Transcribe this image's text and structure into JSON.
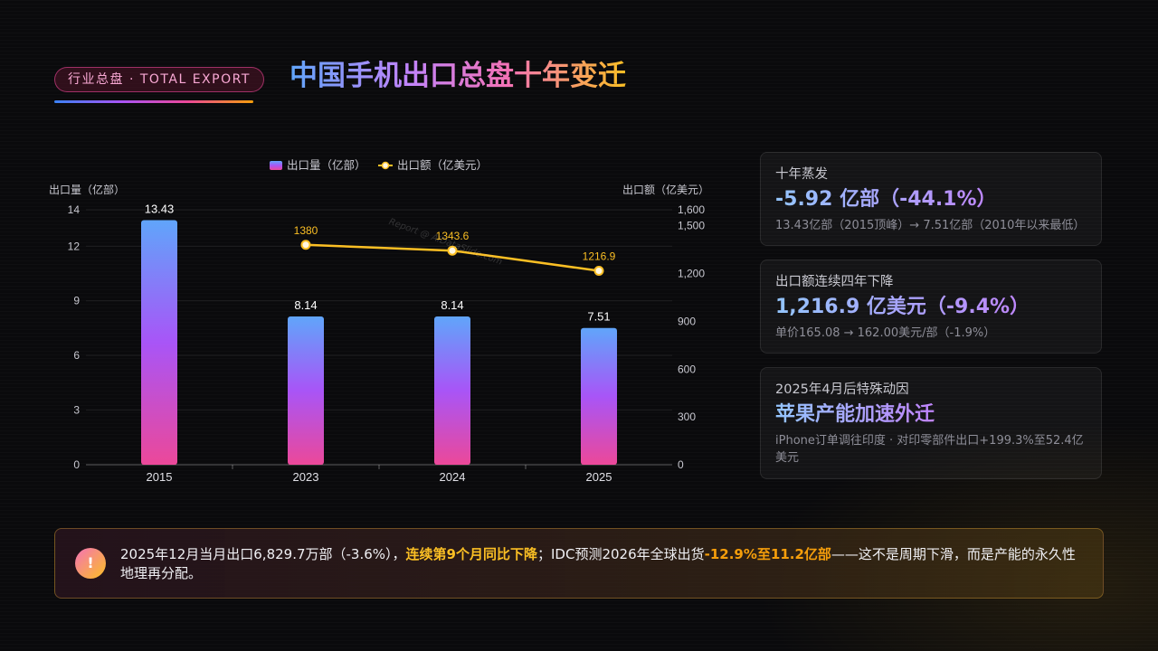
{
  "header": {
    "tag": "行业总盘 · TOTAL EXPORT",
    "title": "中国手机出口总盘十年变迁"
  },
  "watermark": "Report @ AIDataSlide.com",
  "chart_data": {
    "type": "bar",
    "categories": [
      "2015",
      "2023",
      "2024",
      "2025"
    ],
    "series": [
      {
        "name": "出口量（亿部）",
        "type": "bar",
        "axis": "left",
        "values": [
          13.43,
          8.14,
          8.14,
          7.51
        ]
      },
      {
        "name": "出口额（亿美元）",
        "type": "line",
        "axis": "right",
        "values": [
          null,
          1380,
          1343.6,
          1216.9
        ]
      }
    ],
    "left_axis": {
      "label": "出口量（亿部）",
      "ylim": [
        0,
        14
      ],
      "ticks": [
        0,
        3,
        6,
        9,
        12,
        14
      ]
    },
    "right_axis": {
      "label": "出口额（亿美元）",
      "ylim": [
        0,
        1600
      ],
      "ticks": [
        "0",
        "300",
        "600",
        "900",
        "1,200",
        "1,500",
        "1,600"
      ]
    },
    "legend_position": "top-center",
    "colors": {
      "bar_top": "#60a5fa",
      "bar_mid": "#a855f7",
      "bar_bottom": "#ec4899",
      "line": "#fbbf24"
    }
  },
  "cards": [
    {
      "label": "十年蒸发",
      "value": "-5.92 亿部（-44.1%）",
      "sub": "13.43亿部（2015顶峰）→ 7.51亿部（2010年以来最低）"
    },
    {
      "label": "出口额连续四年下降",
      "value": "1,216.9 亿美元（-9.4%）",
      "sub": "单价165.08 → 162.00美元/部（-1.9%）"
    },
    {
      "label": "2025年4月后特殊动因",
      "value": "苹果产能加速外迁",
      "sub": "iPhone订单调往印度 · 对印零部件出口+199.3%至52.4亿美元"
    }
  ],
  "footer": {
    "icon": "!",
    "text_1": "2025年12月当月出口6,829.7万部（-3.6%），",
    "highlight_1": "连续第9个月同比下降",
    "text_2": "；IDC预测2026年全球出货",
    "highlight_2": "-12.9%至11.2亿部",
    "text_3": "——这不是周期下滑，而是产能的永久性地理再分配。"
  }
}
